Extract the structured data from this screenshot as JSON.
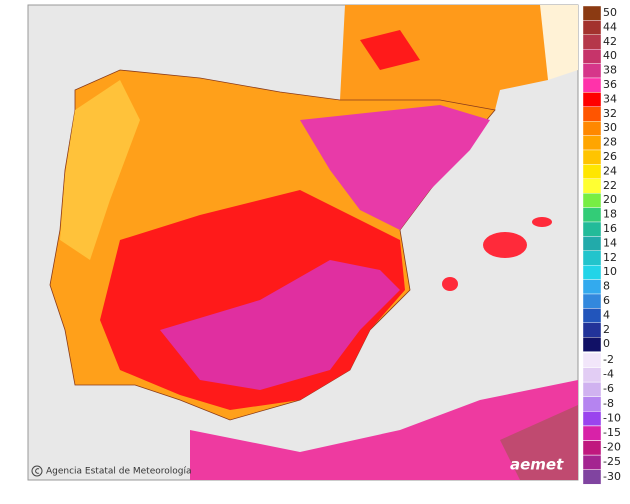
{
  "map": {
    "credit": "Agencia Estatal de Meteorología",
    "logo": "aemet",
    "legend": [
      {
        "value": 50,
        "color": "#8b3a12"
      },
      {
        "value": 44,
        "color": "#a3322e"
      },
      {
        "value": 42,
        "color": "#b5374a"
      },
      {
        "value": 40,
        "color": "#c6346a"
      },
      {
        "value": 38,
        "color": "#d6368a"
      },
      {
        "value": 36,
        "color": "#ff33aa"
      },
      {
        "value": 34,
        "color": "#ff0000"
      },
      {
        "value": 32,
        "color": "#ff5500"
      },
      {
        "value": 30,
        "color": "#ff8800"
      },
      {
        "value": 28,
        "color": "#ffa500"
      },
      {
        "value": 26,
        "color": "#ffc400"
      },
      {
        "value": 24,
        "color": "#ffe600"
      },
      {
        "value": 22,
        "color": "#ffff33"
      },
      {
        "value": 20,
        "color": "#77ee44"
      },
      {
        "value": 18,
        "color": "#33cc77"
      },
      {
        "value": 16,
        "color": "#22bb99"
      },
      {
        "value": 14,
        "color": "#22aaaa"
      },
      {
        "value": 12,
        "color": "#22c4cc"
      },
      {
        "value": 10,
        "color": "#22d4e8"
      },
      {
        "value": 8,
        "color": "#33aaee"
      },
      {
        "value": 6,
        "color": "#3388dd"
      },
      {
        "value": 4,
        "color": "#2255bb"
      },
      {
        "value": 2,
        "color": "#223399"
      },
      {
        "value": 0,
        "color": "#111166"
      },
      {
        "value": -2,
        "color": "#f2e6fa"
      },
      {
        "value": -4,
        "color": "#e2cdf4"
      },
      {
        "value": -6,
        "color": "#d0b2f0"
      },
      {
        "value": -8,
        "color": "#b584f0"
      },
      {
        "value": -10,
        "color": "#9a44ee"
      },
      {
        "value": -15,
        "color": "#d822a8"
      },
      {
        "value": -20,
        "color": "#c0187e"
      },
      {
        "value": -25,
        "color": "#a42490"
      },
      {
        "value": -30,
        "color": "#8044a0"
      }
    ]
  }
}
